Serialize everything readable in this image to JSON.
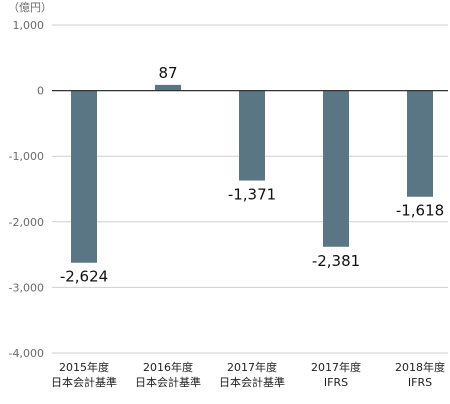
{
  "chart_data": {
    "type": "bar",
    "unit_label": "（億円）",
    "categories": [
      [
        "2015年度",
        "日本会計基準"
      ],
      [
        "2016年度",
        "日本会計基準"
      ],
      [
        "2017年度",
        "日本会計基準"
      ],
      [
        "2017年度",
        "IFRS"
      ],
      [
        "2018年度",
        "IFRS"
      ]
    ],
    "values": [
      -2624,
      87,
      -1371,
      -2381,
      -1618
    ],
    "value_labels": [
      "-2,624",
      "87",
      "-1,371",
      "-2,381",
      "-1,618"
    ],
    "ylim": [
      -4000,
      1000
    ],
    "yticks": [
      1000,
      0,
      -1000,
      -2000,
      -3000,
      -4000
    ],
    "ytick_labels": [
      "1,000",
      "0",
      "-1,000",
      "-2,000",
      "-3,000",
      "-4,000"
    ],
    "grid": true,
    "bar_color": "#5a7684",
    "title": "",
    "xlabel": "",
    "ylabel": ""
  }
}
